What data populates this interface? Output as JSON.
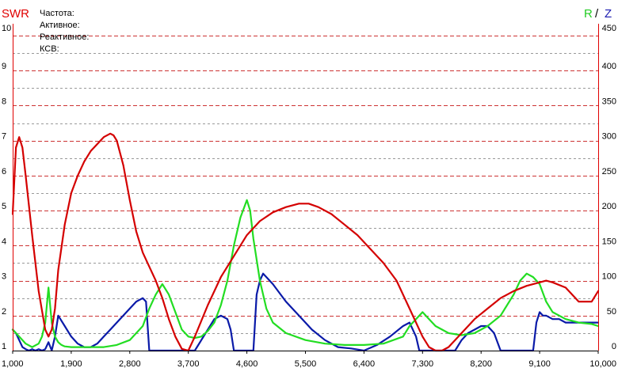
{
  "chart_data": {
    "type": "line",
    "title_left": "SWR",
    "title_right_r": "R",
    "title_right_sep": "/",
    "title_right_z": "Z",
    "info_labels": [
      "Частота:",
      "Активное:",
      "Реактивное:",
      "КСВ:"
    ],
    "x_ticks": [
      "1,000",
      "1,900",
      "2,800",
      "3,700",
      "4,600",
      "5,500",
      "6,400",
      "7,300",
      "8,200",
      "9,100",
      "10,000"
    ],
    "x_tick_values": [
      1000,
      1900,
      2800,
      3700,
      4600,
      5500,
      6400,
      7300,
      8200,
      9100,
      10000
    ],
    "y_left_ticks": [
      "1",
      "2",
      "3",
      "4",
      "5",
      "6",
      "7",
      "8",
      "9",
      "10"
    ],
    "y_right_ticks": [
      "0",
      "50",
      "100",
      "150",
      "200",
      "250",
      "300",
      "350",
      "400",
      "450"
    ],
    "xlim": [
      1000,
      10000
    ],
    "ylim_left": [
      1,
      10
    ],
    "ylim_right": [
      0,
      450
    ],
    "grid": true,
    "colors": {
      "swr": "#d40000",
      "r": "#22dd22",
      "z": "#0a1aa8",
      "swr_title": "#e00000",
      "r_title": "#22cc22",
      "z_title": "#1a1ab0",
      "grid_major": "#cc3333",
      "grid_minor": "#999999"
    },
    "series": [
      {
        "key": "swr",
        "axis": "left",
        "x": [
          1000,
          1050,
          1100,
          1150,
          1200,
          1300,
          1400,
          1500,
          1550,
          1600,
          1650,
          1700,
          1800,
          1900,
          2000,
          2100,
          2200,
          2300,
          2400,
          2500,
          2550,
          2600,
          2700,
          2800,
          2900,
          3000,
          3100,
          3200,
          3300,
          3400,
          3500,
          3600,
          3700,
          3800,
          4000,
          4200,
          4400,
          4600,
          4800,
          5000,
          5200,
          5400,
          5550,
          5700,
          5900,
          6100,
          6300,
          6500,
          6700,
          6900,
          7100,
          7300,
          7400,
          7500,
          7600,
          7700,
          7800,
          7900,
          8100,
          8300,
          8500,
          8700,
          8900,
          9100,
          9200,
          9300,
          9500,
          9700,
          9900,
          10000
        ],
        "y": [
          4.9,
          6.8,
          7.1,
          6.8,
          6.0,
          4.3,
          2.7,
          1.6,
          1.4,
          1.6,
          2.2,
          3.3,
          4.6,
          5.5,
          6.0,
          6.4,
          6.7,
          6.9,
          7.1,
          7.2,
          7.15,
          7.0,
          6.3,
          5.3,
          4.4,
          3.8,
          3.4,
          3.0,
          2.5,
          1.9,
          1.4,
          1.05,
          1.0,
          1.4,
          2.3,
          3.1,
          3.7,
          4.3,
          4.7,
          4.95,
          5.1,
          5.2,
          5.2,
          5.1,
          4.9,
          4.6,
          4.3,
          3.9,
          3.5,
          3.0,
          2.2,
          1.4,
          1.1,
          1.0,
          1.0,
          1.1,
          1.3,
          1.5,
          1.9,
          2.2,
          2.5,
          2.7,
          2.85,
          2.95,
          3.0,
          2.95,
          2.8,
          2.4,
          2.4,
          2.7
        ]
      },
      {
        "key": "r",
        "axis": "right",
        "x": [
          1000,
          1100,
          1200,
          1300,
          1400,
          1450,
          1500,
          1550,
          1600,
          1650,
          1700,
          1750,
          1800,
          1900,
          2000,
          2200,
          2400,
          2600,
          2800,
          3000,
          3100,
          3200,
          3300,
          3400,
          3500,
          3600,
          3700,
          3800,
          3900,
          4000,
          4100,
          4200,
          4300,
          4400,
          4500,
          4600,
          4650,
          4700,
          4800,
          4900,
          5000,
          5200,
          5500,
          5800,
          6100,
          6400,
          6700,
          7000,
          7100,
          7200,
          7300,
          7400,
          7500,
          7700,
          7900,
          8100,
          8300,
          8500,
          8700,
          8800,
          8900,
          9000,
          9100,
          9200,
          9300,
          9500,
          9700,
          9900,
          10000
        ],
        "y": [
          30,
          20,
          10,
          5,
          10,
          20,
          40,
          90,
          40,
          20,
          12,
          8,
          6,
          5,
          5,
          5,
          5,
          8,
          15,
          35,
          60,
          80,
          95,
          80,
          55,
          30,
          20,
          18,
          20,
          28,
          40,
          65,
          100,
          150,
          190,
          215,
          200,
          160,
          100,
          60,
          40,
          25,
          15,
          10,
          8,
          8,
          10,
          20,
          35,
          45,
          55,
          45,
          35,
          25,
          22,
          25,
          35,
          50,
          80,
          100,
          110,
          105,
          95,
          70,
          55,
          45,
          40,
          38,
          35
        ]
      },
      {
        "key": "z",
        "axis": "right",
        "x": [
          1000,
          1050,
          1100,
          1150,
          1200,
          1250,
          1300,
          1350,
          1400,
          1450,
          1500,
          1550,
          1600,
          1650,
          1700,
          1800,
          1900,
          2000,
          2100,
          2200,
          2300,
          2400,
          2500,
          2600,
          2700,
          2800,
          2900,
          3000,
          3050,
          3100,
          3150,
          3200,
          3300,
          3400,
          3500,
          3600,
          3700,
          3800,
          3900,
          4000,
          4100,
          4200,
          4300,
          4350,
          4400,
          4450,
          4500,
          4600,
          4700,
          4750,
          4800,
          4850,
          4900,
          5000,
          5200,
          5400,
          5600,
          5800,
          6000,
          6200,
          6400,
          6600,
          6800,
          7000,
          7100,
          7200,
          7250,
          7300,
          7350,
          7400,
          7500,
          7600,
          7700,
          7800,
          7900,
          8000,
          8100,
          8200,
          8300,
          8400,
          8500,
          8550,
          8600,
          8700,
          8800,
          8900,
          9000,
          9050,
          9100,
          9150,
          9200,
          9300,
          9400,
          9500,
          9600,
          9700,
          9800,
          9900,
          10000
        ],
        "y": [
          30,
          25,
          15,
          5,
          2,
          0,
          2,
          0,
          2,
          0,
          2,
          12,
          0,
          20,
          50,
          35,
          20,
          10,
          5,
          5,
          10,
          20,
          30,
          40,
          50,
          60,
          70,
          75,
          70,
          0,
          0,
          0,
          0,
          0,
          0,
          0,
          0,
          0,
          15,
          30,
          45,
          50,
          45,
          30,
          0,
          0,
          0,
          0,
          0,
          80,
          100,
          110,
          105,
          95,
          70,
          50,
          30,
          15,
          5,
          3,
          0,
          8,
          20,
          35,
          40,
          20,
          0,
          0,
          0,
          0,
          0,
          0,
          0,
          0,
          15,
          25,
          30,
          35,
          35,
          25,
          0,
          0,
          0,
          0,
          0,
          0,
          0,
          40,
          55,
          50,
          50,
          45,
          45,
          40,
          40,
          40,
          40,
          40,
          40
        ]
      }
    ]
  }
}
